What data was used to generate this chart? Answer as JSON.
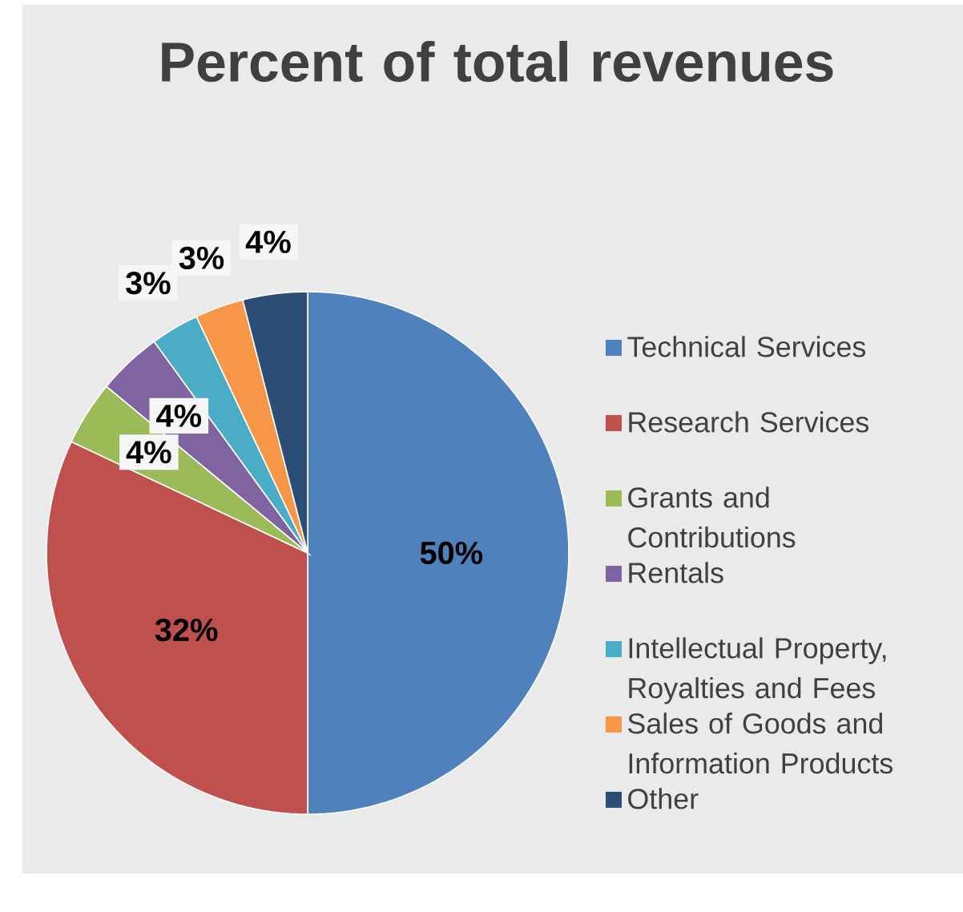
{
  "chart_data": {
    "type": "pie",
    "title": "Percent of total revenues",
    "categories": [
      "Technical Services",
      "Research Services",
      "Grants and Contributions",
      "Rentals",
      "Intellectual Property, Royalties and Fees",
      "Sales of Goods and Information Products",
      "Other"
    ],
    "values": [
      50,
      32,
      4,
      4,
      3,
      3,
      4
    ],
    "value_labels": [
      "50%",
      "32%",
      "4%",
      "4%",
      "3%",
      "3%",
      "4%"
    ],
    "colors": [
      "#4f81bd",
      "#c0504d",
      "#9bbb59",
      "#8064a2",
      "#4bacc6",
      "#f79646",
      "#2c4d75"
    ],
    "legend": "right"
  }
}
